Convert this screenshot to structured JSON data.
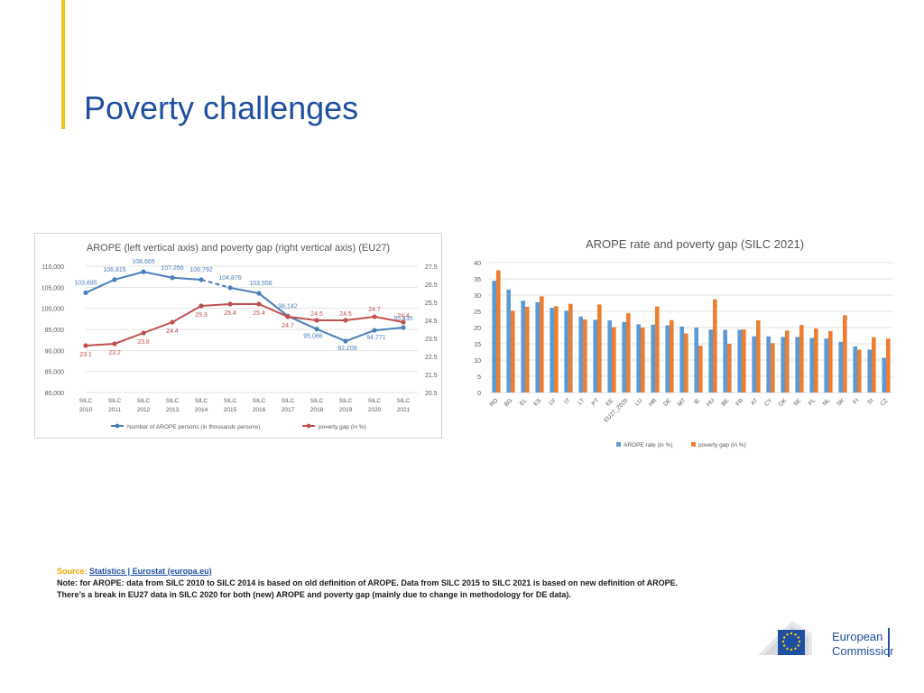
{
  "page": {
    "title": "Poverty challenges",
    "source_label": "Source:",
    "source_link": "Statistics | Eurostat (europa.eu)",
    "note": "Note: for AROPE: data from SILC 2010 to SILC 2014 is based on old definition of AROPE. Data from SILC 2015 to SILC 2021 is based on new definition of AROPE. There’s a break in EU27 data in SILC 2020 for both (new) AROPE and poverty gap (mainly due to change in methodology for DE data).",
    "logo_text_line1": "European",
    "logo_text_line2": "Commission"
  },
  "chart_data": [
    {
      "type": "line",
      "title": "AROPE (left vertical axis) and poverty gap (right vertical axis) (EU27)",
      "categories": [
        "SILC 2010",
        "SILC 2011",
        "SILC 2012",
        "SILC 2013",
        "SILC 2014",
        "SILC 2015",
        "SILC 2016",
        "SILC 2017",
        "SILC 2018",
        "SILC 2019",
        "SILC 2020",
        "SILC 2021"
      ],
      "category_lines": [
        [
          "SILC",
          "2010"
        ],
        [
          "SILC",
          "2011"
        ],
        [
          "SILC",
          "2012"
        ],
        [
          "SILC",
          "2013"
        ],
        [
          "SILC",
          "2014"
        ],
        [
          "SILC",
          "2015"
        ],
        [
          "SILC",
          "2016"
        ],
        [
          "SILC",
          "2017"
        ],
        [
          "SILC",
          "2018"
        ],
        [
          "SILC",
          "2019"
        ],
        [
          "SILC",
          "2020"
        ],
        [
          "SILC",
          "2021"
        ]
      ],
      "left_axis": {
        "ylim": [
          80000,
          110000
        ],
        "ticks": [
          "80,000",
          "85,000",
          "90,000",
          "95,000",
          "100,000",
          "105,000",
          "110,000"
        ],
        "tick_values": [
          80000,
          85000,
          90000,
          95000,
          100000,
          105000,
          110000
        ]
      },
      "right_axis": {
        "ylim": [
          20.5,
          27.5
        ],
        "ticks": [
          "20.5",
          "21.5",
          "22.5",
          "23.5",
          "24.5",
          "25.5",
          "26.5",
          "27.5"
        ],
        "tick_values": [
          20.5,
          21.5,
          22.5,
          23.5,
          24.5,
          25.5,
          26.5,
          27.5
        ]
      },
      "series": [
        {
          "name": "Number of AROPE persons (in thousands persons)",
          "axis": "left",
          "color": "#4a7ebb",
          "values": [
            103695,
            106815,
            108665,
            107266,
            106792,
            104876,
            103556,
            98142,
            95066,
            92209,
            94771,
            95435
          ],
          "labels": [
            "103,695",
            "106,815",
            "108,665",
            "107,266",
            "106,792",
            "104,876",
            "103,556",
            "98,142",
            "95,066",
            "92,209",
            "94,771",
            "95,435"
          ],
          "dashed_segment": "SILC 2014-SILC 2015"
        },
        {
          "name": "poverty gap (in %)",
          "axis": "right",
          "color": "#c0504d",
          "values": [
            23.1,
            23.2,
            23.8,
            24.4,
            25.3,
            25.4,
            25.4,
            24.7,
            24.5,
            24.5,
            24.7,
            24.4
          ],
          "labels": [
            "23.1",
            "23.2",
            "23.8",
            "24.4",
            "25.3",
            "25.4",
            "25.4",
            "24.7",
            "24.5",
            "24.5",
            "24.7",
            "24.4"
          ]
        }
      ]
    },
    {
      "type": "bar",
      "title": "AROPE rate and poverty gap (SILC 2021)",
      "categories": [
        "RO",
        "BG",
        "EL",
        "ES",
        "LV",
        "IT",
        "LT",
        "PT",
        "EE",
        "EU27_2020",
        "LU",
        "HR",
        "DE",
        "MT",
        "IE",
        "HU",
        "BE",
        "FR",
        "AT",
        "CY",
        "DK",
        "SE",
        "PL",
        "NL",
        "SK",
        "FI",
        "SI",
        "CZ"
      ],
      "ylim": [
        0,
        40
      ],
      "ticks": [
        "0",
        "5",
        "10",
        "15",
        "20",
        "25",
        "30",
        "35",
        "40"
      ],
      "tick_values": [
        0,
        5,
        10,
        15,
        20,
        25,
        30,
        35,
        40
      ],
      "series": [
        {
          "name": "AROPE rate (in %)",
          "color": "#5b9bd5",
          "values": [
            34.4,
            31.7,
            28.3,
            27.8,
            26.1,
            25.2,
            23.4,
            22.4,
            22.2,
            21.7,
            21.0,
            20.9,
            20.7,
            20.3,
            20.0,
            19.4,
            19.3,
            19.3,
            17.3,
            17.3,
            17.1,
            17.1,
            16.8,
            16.6,
            15.6,
            14.2,
            13.2,
            10.7
          ]
        },
        {
          "name": "poverty gap (in %)",
          "color": "#ed7d31",
          "values": [
            37.6,
            25.2,
            26.4,
            29.6,
            26.6,
            27.3,
            22.5,
            27.1,
            20.1,
            24.4,
            20.0,
            26.5,
            22.3,
            18.2,
            14.4,
            28.7,
            15.0,
            19.4,
            22.2,
            15.2,
            19.1,
            20.8,
            19.7,
            18.9,
            23.8,
            13.2,
            17.0,
            16.6
          ]
        }
      ]
    }
  ]
}
